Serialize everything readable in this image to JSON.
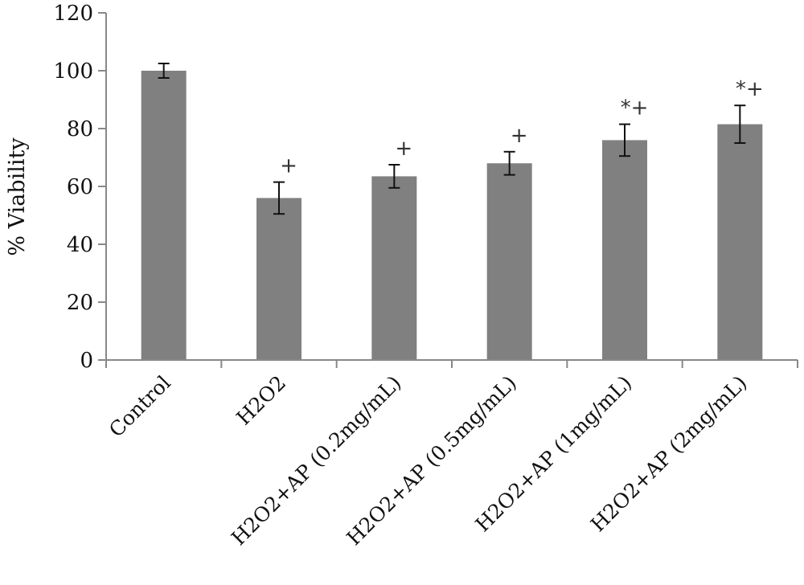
{
  "chart_data": {
    "type": "bar",
    "title": "",
    "xlabel": "",
    "ylabel": "% Viability",
    "ylim": [
      0,
      120
    ],
    "yticks": [
      0,
      20,
      40,
      60,
      80,
      100,
      120
    ],
    "grid": false,
    "legend": "none",
    "bar_color": "#808080",
    "categories": [
      "Control",
      "H2O2",
      "H2O2+AP (0.2mg/mL)",
      "H2O2+AP (0.5mg/mL)",
      "H2O2+AP (1mg/mL)",
      "H2O2+AP (2mg/mL)"
    ],
    "values": [
      100,
      56,
      63.5,
      68,
      76,
      81.5
    ],
    "errors": [
      2.5,
      5.5,
      4,
      4,
      5.5,
      6.5
    ],
    "annotations": [
      "",
      "+",
      "+",
      "+",
      "*+",
      "*+"
    ]
  }
}
